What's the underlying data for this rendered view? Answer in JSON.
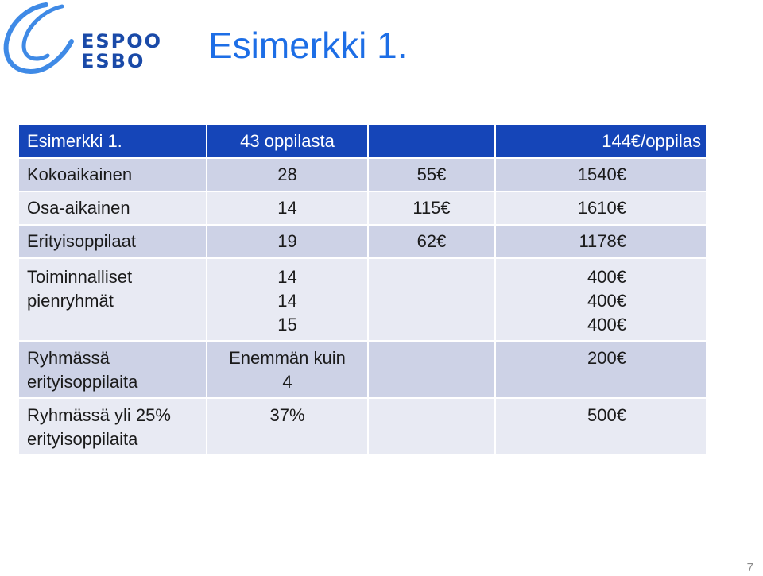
{
  "logo": {
    "line1": "ESPOO",
    "line2": "ESBO"
  },
  "title": "Esimerkki 1.",
  "table": {
    "header": [
      "Esimerkki 1.",
      "43 oppilasta",
      "",
      "144€/oppilas"
    ],
    "rows": [
      [
        "Kokoaikainen",
        "28",
        "55€",
        "1540€"
      ],
      [
        "Osa-aikainen",
        "14",
        "115€",
        "1610€"
      ],
      [
        "Erityisoppilaat",
        "19",
        "62€",
        "1178€"
      ],
      {
        "c1": [
          "Toiminnalliset",
          "pienryhmät"
        ],
        "c2": [
          "14",
          "14",
          "15"
        ],
        "c3": "",
        "c4": [
          "400€",
          "400€",
          "400€"
        ]
      },
      {
        "c1": [
          "Ryhmässä",
          "erityisoppilaita"
        ],
        "c2": [
          "Enemmän kuin",
          "4"
        ],
        "c3": "",
        "c4": [
          "200€"
        ]
      },
      {
        "c1": [
          "Ryhmässä yli 25%",
          "erityisoppilaita"
        ],
        "c2": [
          "37%"
        ],
        "c3": "",
        "c4": [
          "500€"
        ]
      }
    ]
  },
  "colors": {
    "header_bg": "#1545b8",
    "row_dark": "#cdd2e6",
    "row_light": "#e8eaf3",
    "title": "#1d6ee6",
    "logo": "#1a4aa8"
  },
  "page_number": "7"
}
